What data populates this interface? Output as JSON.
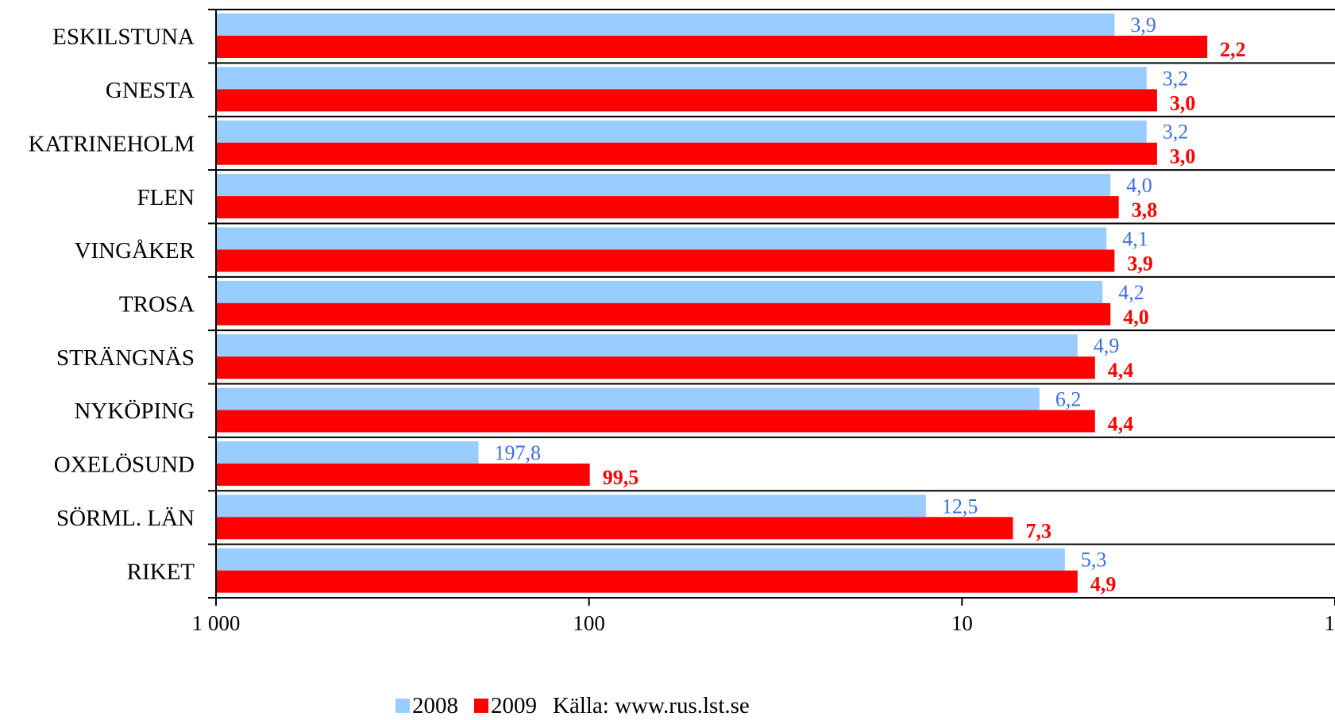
{
  "chart_data": {
    "type": "bar",
    "orientation": "horizontal",
    "x_scale": "log",
    "x_reversed": true,
    "xlim": [
      1000,
      1
    ],
    "ticks": [
      {
        "value": 1000,
        "label": "1 000"
      },
      {
        "value": 100,
        "label": "100"
      },
      {
        "value": 10,
        "label": "10"
      },
      {
        "value": 1,
        "label": "1"
      }
    ],
    "categories": [
      "ESKILSTUNA",
      "GNESTA",
      "KATRINEHOLM",
      "FLEN",
      "VINGÅKER",
      "TROSA",
      "STRÄNGNÄS",
      "NYKÖPING",
      "OXELÖSUND",
      "SÖRML. LÄN",
      "RIKET"
    ],
    "series": [
      {
        "name": "2008",
        "color": "#99ccff",
        "label_color": "#3b6fe0",
        "values": [
          3.9,
          3.2,
          3.2,
          4.0,
          4.1,
          4.2,
          4.9,
          6.2,
          197.8,
          12.5,
          5.3
        ],
        "labels": [
          "3,9",
          "3,2",
          "3,2",
          "4,0",
          "4,1",
          "4,2",
          "4,9",
          "6,2",
          "197,8",
          "12,5",
          "5,3"
        ]
      },
      {
        "name": "2009",
        "color": "#ff0000",
        "label_color": "#ff0000",
        "values": [
          2.2,
          3.0,
          3.0,
          3.8,
          3.9,
          4.0,
          4.4,
          4.4,
          99.5,
          7.3,
          4.9
        ],
        "labels": [
          "2,2",
          "3,0",
          "3,0",
          "3,8",
          "3,9",
          "4,0",
          "4,4",
          "4,4",
          "99,5",
          "7,3",
          "4,9"
        ]
      }
    ],
    "grid": "horizontal separators between categories",
    "legend_position": "bottom"
  },
  "legend": {
    "item_2008": "2008",
    "item_2009": "2009",
    "source": "Källa: www.rus.lst.se"
  }
}
